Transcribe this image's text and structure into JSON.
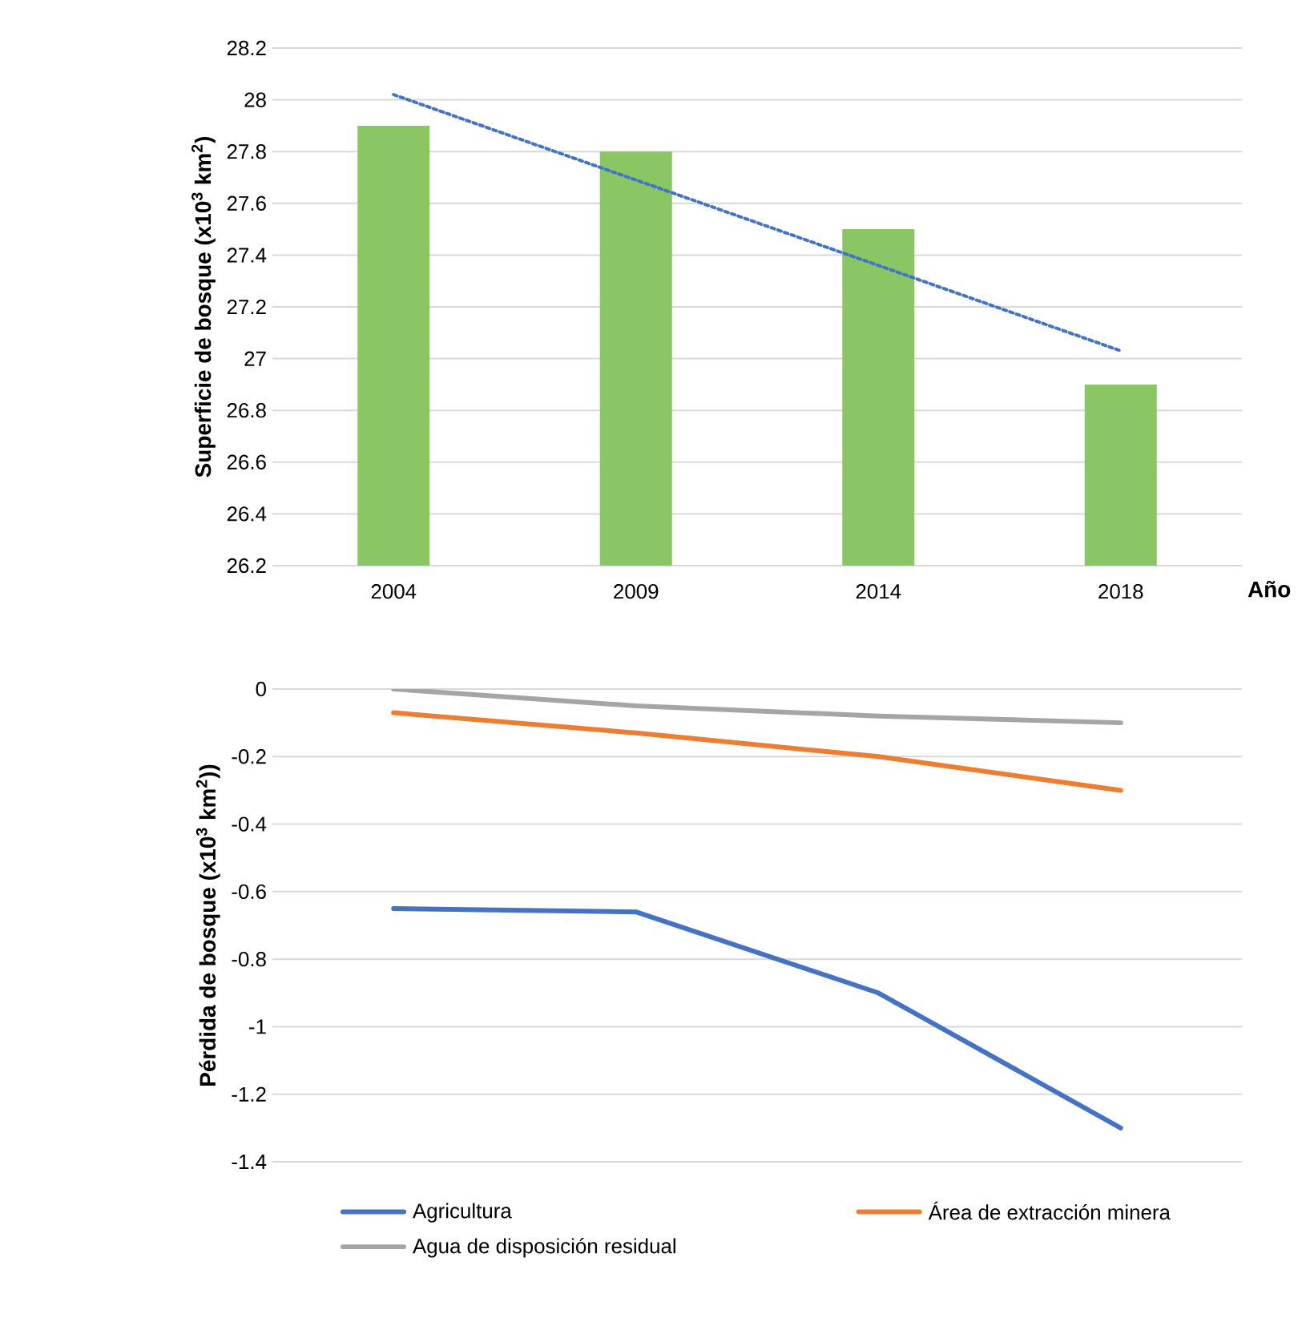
{
  "chart_data": [
    {
      "type": "bar",
      "categories": [
        "2004",
        "2009",
        "2014",
        "2018"
      ],
      "xlabel": "Año",
      "ylabel": "Superficie de bosque (x10$^{3}$ km$^{2}$)",
      "series": [
        {
          "type": "bar",
          "color": "#8bc665",
          "values": [
            27.9,
            27.8,
            27.5,
            26.9
          ]
        },
        {
          "type": "line",
          "color": "#4472c4",
          "line_style": "dotted",
          "values": [
            28.02,
            27.69,
            27.36,
            27.03
          ]
        }
      ],
      "ylim": [
        26.2,
        28.2
      ],
      "yticks": [
        26.2,
        26.4,
        26.6,
        26.8,
        27,
        27.2,
        27.4,
        27.6,
        27.8,
        28,
        28.2
      ],
      "grid": "y"
    },
    {
      "type": "line",
      "categories": [
        null,
        null,
        null,
        null
      ],
      "ylabel": "Pérdida de bosque (x10$^{3}$ km$^{2}$))",
      "series": [
        {
          "name": "Agricultura",
          "color": "#4472c4",
          "values": [
            -0.65,
            -0.66,
            -0.9,
            -1.3
          ]
        },
        {
          "name": "Área de extracción minera",
          "color": "#ed7d31",
          "values": [
            -0.07,
            -0.13,
            -0.2,
            -0.3
          ]
        },
        {
          "name": "Agua de disposición residual",
          "color": "#a5a5a5",
          "values": [
            0,
            -0.05,
            -0.08,
            -0.1
          ]
        }
      ],
      "ylim": [
        -1.4,
        0
      ],
      "yticks": [
        -1.4,
        -1.2,
        -1,
        -0.8,
        -0.6,
        -0.4,
        -0.2,
        0
      ],
      "grid": "y",
      "legend": "bottom",
      "tick_labels": "y"
    }
  ]
}
